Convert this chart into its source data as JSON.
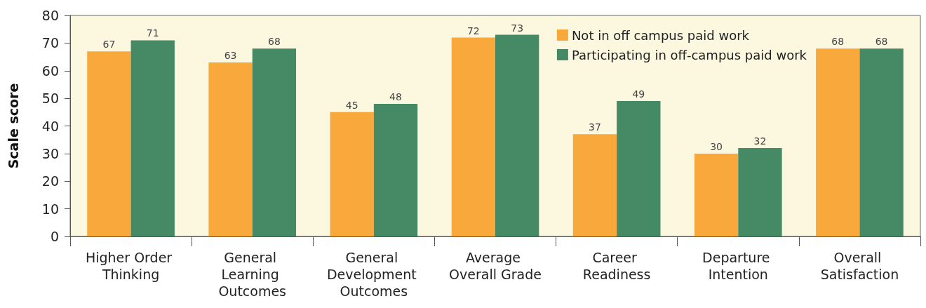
{
  "chart_data": {
    "type": "bar",
    "ylabel": "Scale score",
    "categories": [
      "Higher Order Thinking",
      "General Learning Outcomes",
      "General Development Outcomes",
      "Average Overall Grade",
      "Career Readiness",
      "Departure Intention",
      "Overall Satisfaction"
    ],
    "series": [
      {
        "name": "Not in off campus paid work",
        "color": "#f9a93b",
        "values": [
          67,
          63,
          45,
          72,
          37,
          30,
          68
        ]
      },
      {
        "name": "Participating in off-campus paid work",
        "color": "#458a65",
        "values": [
          71,
          68,
          48,
          73,
          49,
          32,
          68
        ]
      }
    ],
    "ylim": [
      0,
      80
    ],
    "yticks": [
      0,
      10,
      20,
      30,
      40,
      50,
      60,
      70,
      80
    ],
    "grid": false,
    "legend": "top right",
    "data_labels": true
  }
}
